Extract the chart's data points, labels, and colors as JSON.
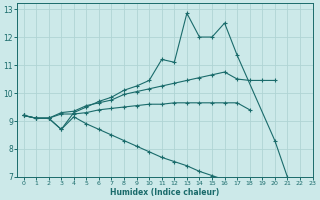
{
  "xlabel": "Humidex (Indice chaleur)",
  "xlim": [
    -0.5,
    23
  ],
  "ylim": [
    7,
    13.2
  ],
  "yticks": [
    7,
    8,
    9,
    10,
    11,
    12,
    13
  ],
  "xticks": [
    0,
    1,
    2,
    3,
    4,
    5,
    6,
    7,
    8,
    9,
    10,
    11,
    12,
    13,
    14,
    15,
    16,
    17,
    18,
    19,
    20,
    21,
    22,
    23
  ],
  "bg_color": "#cce9e9",
  "line_color": "#1a6b6b",
  "grid_color": "#b0d4d4",
  "lines": [
    {
      "x": [
        0,
        1,
        2,
        3,
        4,
        5,
        6,
        7,
        8,
        9,
        10,
        11,
        12,
        13,
        14,
        15,
        16,
        17,
        20,
        21,
        22
      ],
      "y": [
        9.2,
        9.1,
        9.1,
        8.7,
        9.3,
        9.5,
        9.7,
        9.85,
        10.1,
        10.25,
        10.45,
        11.2,
        11.1,
        12.85,
        12.0,
        12.0,
        12.5,
        11.35,
        8.3,
        7.0,
        6.5
      ]
    },
    {
      "x": [
        0,
        1,
        2,
        3,
        4,
        5,
        6,
        7,
        8,
        9,
        10,
        11,
        12,
        13,
        14,
        15,
        16,
        17,
        18,
        19,
        20
      ],
      "y": [
        9.2,
        9.1,
        9.1,
        9.3,
        9.35,
        9.55,
        9.65,
        9.75,
        9.95,
        10.05,
        10.15,
        10.25,
        10.35,
        10.45,
        10.55,
        10.65,
        10.75,
        10.5,
        10.45,
        10.45,
        10.45
      ]
    },
    {
      "x": [
        0,
        1,
        2,
        3,
        4,
        5,
        6,
        7,
        8,
        9,
        10,
        11,
        12,
        13,
        14,
        15,
        16,
        17,
        18
      ],
      "y": [
        9.2,
        9.1,
        9.1,
        9.25,
        9.25,
        9.3,
        9.4,
        9.45,
        9.5,
        9.55,
        9.6,
        9.6,
        9.65,
        9.65,
        9.65,
        9.65,
        9.65,
        9.65,
        9.4
      ]
    },
    {
      "x": [
        0,
        1,
        2,
        3,
        4,
        5,
        6,
        7,
        8,
        9,
        10,
        11,
        12,
        13,
        14,
        15,
        16,
        17,
        18
      ],
      "y": [
        9.2,
        9.1,
        9.1,
        8.7,
        9.15,
        8.9,
        8.7,
        8.5,
        8.3,
        8.1,
        7.9,
        7.7,
        7.55,
        7.4,
        7.2,
        7.05,
        6.9,
        6.7,
        6.55
      ]
    }
  ]
}
